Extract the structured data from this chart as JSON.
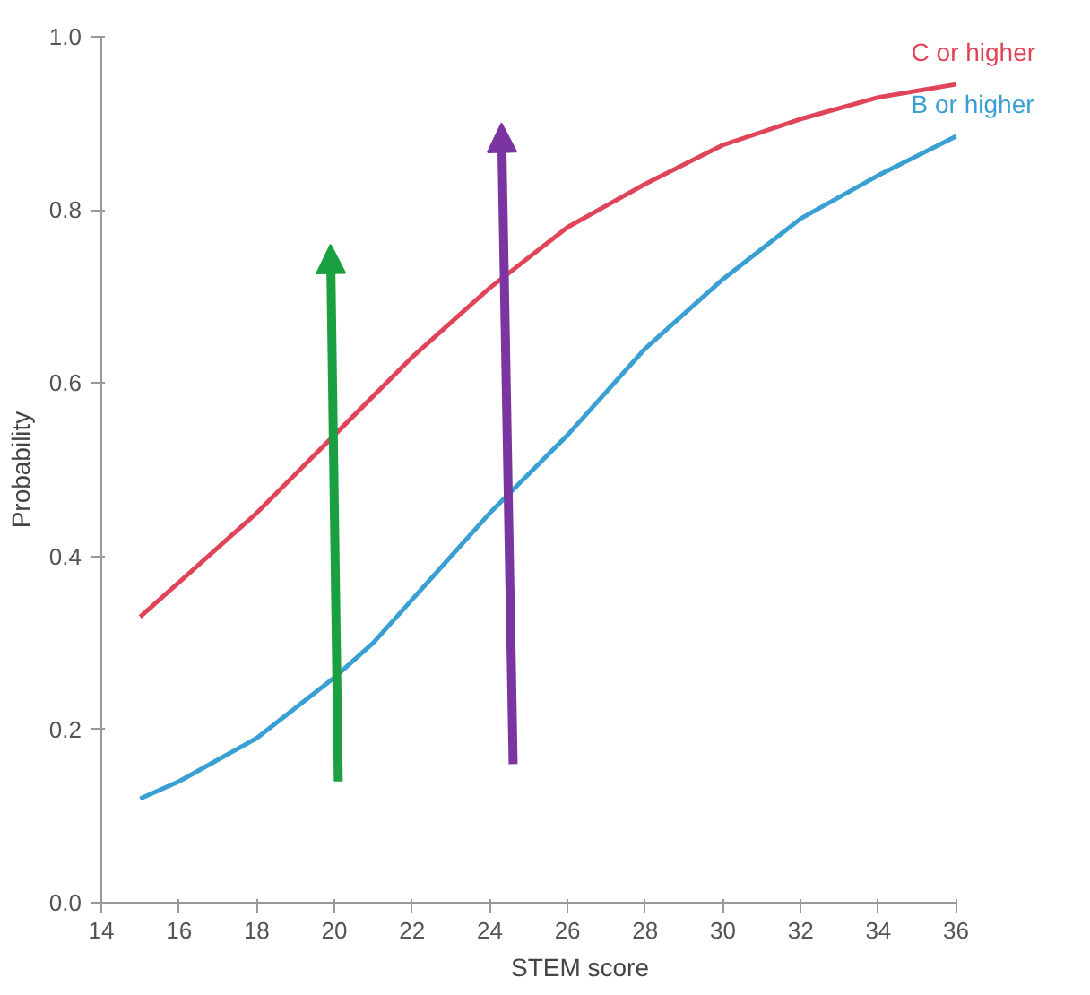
{
  "chart_data": {
    "type": "line",
    "xlabel": "STEM score",
    "ylabel": "Probability",
    "x": [
      15,
      16,
      18,
      20,
      21,
      22,
      24,
      26,
      27,
      28,
      30,
      32,
      34,
      36
    ],
    "series": [
      {
        "name": "C or higher",
        "color": "#e04458",
        "values": [
          0.33,
          0.37,
          0.45,
          0.54,
          0.585,
          0.63,
          0.71,
          0.78,
          0.805,
          0.83,
          0.875,
          0.905,
          0.93,
          0.945
        ]
      },
      {
        "name": "B or higher",
        "color": "#3a9fd2",
        "values": [
          0.12,
          0.14,
          0.19,
          0.26,
          0.3,
          0.35,
          0.45,
          0.54,
          0.59,
          0.64,
          0.72,
          0.79,
          0.84,
          0.885
        ]
      }
    ],
    "xlim": [
      14,
      36
    ],
    "ylim": [
      0,
      1
    ],
    "xticks": [
      14,
      16,
      18,
      20,
      22,
      24,
      26,
      28,
      30,
      32,
      34,
      36
    ],
    "yticks": [
      {
        "value": 0,
        "label": "0.0"
      },
      {
        "value": 0.2,
        "label": "0.2"
      },
      {
        "value": 0.4,
        "label": "0.4"
      },
      {
        "value": 0.6,
        "label": "0.6"
      },
      {
        "value": 0.8,
        "label": "0.8"
      },
      {
        "value": 1,
        "label": "1.0"
      }
    ],
    "grid": false,
    "legend": false,
    "marker": "none",
    "line_style": "solid"
  }
}
